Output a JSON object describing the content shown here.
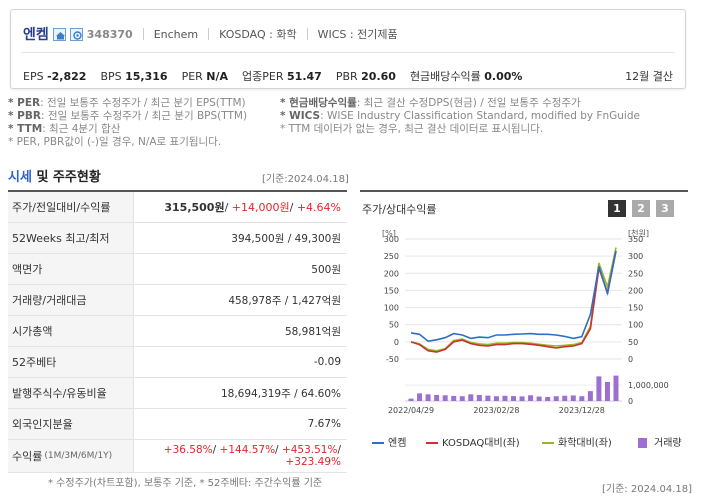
{
  "header": {
    "company_name": "엔켐",
    "code": "348370",
    "english_name": "Enchem",
    "market": "KOSDAQ : 화학",
    "wics": "WICS : 전기제품"
  },
  "metrics": {
    "eps_label": "EPS",
    "eps": "-2,822",
    "bps_label": "BPS",
    "bps": "15,316",
    "per_label": "PER",
    "per": "N/A",
    "industry_per_label": "업종PER",
    "industry_per": "51.47",
    "pbr_label": "PBR",
    "pbr": "20.60",
    "dividend_label": "현금배당수익률",
    "dividend": "0.00%",
    "settlement": "12월 결산"
  },
  "notes_left": [
    {
      "key": "* PER",
      "text": ": 전일 보통주 수정주가 / 최근 분기 EPS(TTM)"
    },
    {
      "key": "* PBR",
      "text": ": 전일 보통주 수정주가 / 최근 분기 BPS(TTM)"
    },
    {
      "key": "* TTM",
      "text": ": 최근 4분기 합산"
    },
    {
      "key": "",
      "text": "* PER, PBR값이 (-)일 경우, N/A로 표기됩니다."
    }
  ],
  "notes_right": [
    {
      "key": "* 현금배당수익률",
      "text": ": 최근 결산 수정DPS(현금) / 전일 보통주 수정주가"
    },
    {
      "key": "* WICS",
      "text": ": WISE Industry Classification Standard, modified by FnGuide"
    },
    {
      "key": "",
      "text": "* TTM 데이터가 없는 경우, 최근 결산 데이터로 표시됩니다."
    }
  ],
  "section": {
    "title_highlight": "시세",
    "title_rest": " 및 주주현황",
    "date": "[기준:2024.04.18]"
  },
  "table": {
    "rows": [
      {
        "label": "주가/전일대비/수익률",
        "value": "315,500원",
        "change": "+14,000원",
        "rate": "+4.64%"
      },
      {
        "label": "52Weeks 최고/최저",
        "value": "394,500원 / 49,300원"
      },
      {
        "label": "액면가",
        "value": "500원"
      },
      {
        "label": "거래량/거래대금",
        "value": "458,978주 / 1,427억원"
      },
      {
        "label": "시가총액",
        "value": "58,981억원"
      },
      {
        "label": "52주베타",
        "value": "-0.09"
      },
      {
        "label": "발행주식수/유동비율",
        "value": "18,694,319주 / 64.60%"
      },
      {
        "label": "외국인지분율",
        "value": "7.67%"
      },
      {
        "label": "수익률",
        "label_sub": "(1M/3M/6M/1Y)",
        "r1m": "+36.58%",
        "r3m": "+144.57%",
        "r6m": "+453.51%",
        "r1y": "+323.49%"
      }
    ],
    "note": "* 수정주가(차트포함), 보통주 기준, * 52주베타: 주간수익률 기준"
  },
  "chart_panel": {
    "title": "주가/상대수익률",
    "pages": [
      "1",
      "2",
      "3"
    ],
    "date": "[기준: 2024.04.18]"
  },
  "chart_data": {
    "type": "line",
    "left_axis_unit": "[%]",
    "right_axis_unit": "[천원]",
    "left_ticks": [
      "300",
      "250",
      "200",
      "150",
      "100",
      "50",
      "0",
      "-50"
    ],
    "right_ticks": [
      "350",
      "300",
      "250",
      "200",
      "150",
      "100",
      "50",
      "0"
    ],
    "volume_tick": "1,000,000",
    "volume_zero": "0",
    "x_labels": [
      "2022/04/29",
      "2023/02/28",
      "2023/12/28"
    ],
    "x": [
      "2022/04",
      "2022/05",
      "2022/06",
      "2022/07",
      "2022/08",
      "2022/09",
      "2022/10",
      "2022/11",
      "2022/12",
      "2023/01",
      "2023/02",
      "2023/03",
      "2023/04",
      "2023/05",
      "2023/06",
      "2023/07",
      "2023/08",
      "2023/09",
      "2023/10",
      "2023/11",
      "2023/12",
      "2024/01",
      "2024/02",
      "2024/03",
      "2024/04"
    ],
    "series": [
      {
        "name": "엔켐",
        "color": "#2f6ec4",
        "axis": "right",
        "values": [
          76,
          72,
          52,
          56,
          62,
          74,
          70,
          60,
          64,
          62,
          70,
          70,
          72,
          73,
          74,
          72,
          72,
          70,
          66,
          60,
          65,
          130,
          270,
          190,
          315
        ]
      },
      {
        "name": "KOSDAQ대비(좌)",
        "color": "#c83232",
        "axis": "left",
        "values": [
          0,
          -8,
          -26,
          -30,
          -22,
          0,
          5,
          -5,
          -10,
          -12,
          -8,
          -8,
          -5,
          -5,
          -7,
          -10,
          -14,
          -18,
          -14,
          -12,
          -5,
          38,
          215,
          143,
          265
        ]
      },
      {
        "name": "화학대비(좌)",
        "color": "#9ab523",
        "axis": "left",
        "values": [
          0,
          -6,
          -22,
          -26,
          -20,
          4,
          8,
          -2,
          -6,
          -8,
          -4,
          -4,
          -2,
          -2,
          -4,
          -7,
          -10,
          -12,
          -10,
          -8,
          -2,
          45,
          230,
          160,
          275
        ]
      },
      {
        "name": "거래량",
        "color": "#9c6fd0",
        "axis": "volume",
        "values": [
          150000,
          480000,
          420000,
          380000,
          360000,
          320000,
          300000,
          420000,
          380000,
          340000,
          300000,
          330000,
          310000,
          290000,
          360000,
          280000,
          250000,
          300000,
          330000,
          350000,
          300000,
          620000,
          1550000,
          1200000,
          1600000
        ]
      }
    ]
  }
}
